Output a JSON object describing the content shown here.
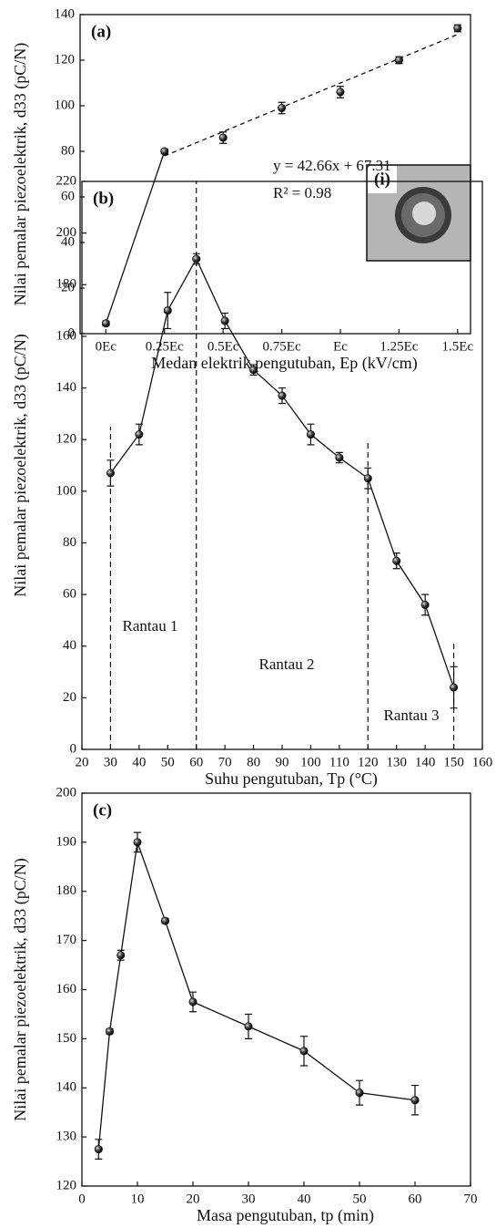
{
  "chart_data": [
    {
      "type": "scatter",
      "panel_label": "(a)",
      "xlabel": "Medan elektrik pengutuban, Ep (kV/cm)",
      "ylabel": "Nilai pemalar piezoelektrik, d33 (pC/N)",
      "x": [
        0,
        0.25,
        0.5,
        0.75,
        1,
        1.25,
        1.5
      ],
      "values": [
        4.5,
        80,
        86,
        99,
        106,
        120,
        134
      ],
      "errors": [
        1,
        1,
        2.5,
        2.5,
        2.5,
        1.5,
        1.5
      ],
      "xlim": [
        -0.11,
        1.555
      ],
      "xticks": [
        {
          "value": 0,
          "label": "0Ec"
        },
        {
          "value": 0.25,
          "label": "0.25Ec"
        },
        {
          "value": 0.5,
          "label": "0.5Ec"
        },
        {
          "value": 0.75,
          "label": "0.75Ec"
        },
        {
          "value": 1,
          "label": "Ec"
        },
        {
          "value": 1.25,
          "label": "1.25Ec"
        },
        {
          "value": 1.5,
          "label": "1.5Ec"
        }
      ],
      "ylim": [
        0,
        140
      ],
      "yticks": [
        0,
        20,
        40,
        60,
        80,
        100,
        120,
        140
      ],
      "fit": {
        "slope": 42.66,
        "intercept": 67.31,
        "x_range": [
          0.25,
          1.5
        ]
      },
      "annotations": [
        "y = 42.66x + 67.31",
        "R² = 0.98"
      ]
    },
    {
      "type": "line",
      "panel_label": "(b)",
      "xlabel": "Suhu pengutuban, Tp (°C)",
      "ylabel": "Nilai pemalar piezoelektrik, d33 (pC/N)",
      "x": [
        30,
        40,
        50,
        60,
        70,
        80,
        90,
        100,
        110,
        120,
        130,
        140,
        150
      ],
      "values": [
        107,
        122,
        170,
        190,
        166,
        147,
        137,
        122,
        113,
        105,
        73,
        56,
        24
      ],
      "errors": [
        5,
        4,
        7,
        2,
        3,
        2,
        3,
        4,
        2,
        4,
        3,
        4,
        8
      ],
      "xlim": [
        20,
        160
      ],
      "xticks": [
        20,
        30,
        40,
        50,
        60,
        70,
        80,
        90,
        100,
        110,
        120,
        130,
        140,
        150,
        160
      ],
      "ylim": [
        0,
        220
      ],
      "yticks": [
        0,
        20,
        40,
        60,
        80,
        100,
        120,
        140,
        160,
        180,
        200,
        220
      ],
      "vlines": [
        {
          "x": 30,
          "top": 125
        },
        {
          "x": 60,
          "top": 220
        },
        {
          "x": 120,
          "top": 120
        },
        {
          "x": 150,
          "top": 42
        }
      ],
      "annotations": [
        "Rantau 1",
        "Rantau 2",
        "Rantau 3"
      ],
      "inset_label": "(i)"
    },
    {
      "type": "line",
      "panel_label": "(c)",
      "xlabel": "Masa pengutuban, tp (min)",
      "ylabel": "Nilai pemalar piezoelektrik, d33 (pC/N)",
      "x": [
        3,
        5,
        7,
        10,
        15,
        20,
        30,
        40,
        50,
        60
      ],
      "values": [
        127.5,
        151.5,
        167,
        190,
        174,
        157.5,
        152.5,
        147.5,
        139,
        137.5
      ],
      "errors": [
        2,
        0.5,
        1,
        2,
        0.5,
        2,
        2.5,
        3,
        2.5,
        3
      ],
      "xlim": [
        0,
        70
      ],
      "xticks": [
        0,
        10,
        20,
        30,
        40,
        50,
        60,
        70
      ],
      "ylim": [
        120,
        200
      ],
      "yticks": [
        120,
        130,
        140,
        150,
        160,
        170,
        180,
        190,
        200
      ]
    }
  ]
}
